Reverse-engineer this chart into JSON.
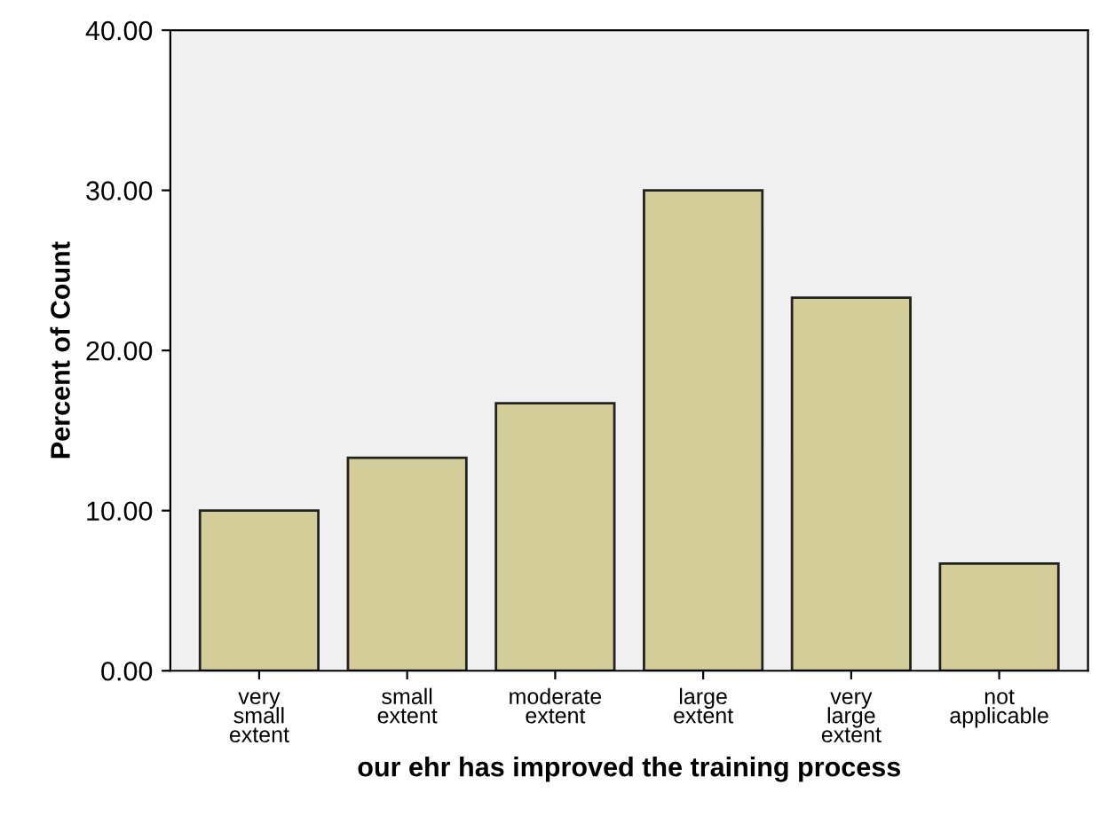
{
  "chart_data": {
    "type": "bar",
    "xlabel": "our ehr has improved the training process",
    "ylabel": "Percent of Count",
    "categories": [
      "very\nsmall\nextent",
      "small\nextent",
      "moderate\nextent",
      "large\nextent",
      "very\nlarge\nextent",
      "not\napplicable"
    ],
    "values": [
      10,
      13.3,
      16.7,
      30,
      23.3,
      6.7
    ],
    "color": "#d3ce99",
    "ylim": [
      0,
      40
    ],
    "yticks": [
      {
        "value": 0,
        "label": "0.00"
      },
      {
        "value": 10,
        "label": "10.00"
      },
      {
        "value": 20,
        "label": "20.00"
      },
      {
        "value": 30,
        "label": "30.00"
      },
      {
        "value": 40,
        "label": "40.00"
      }
    ],
    "grid": false
  }
}
